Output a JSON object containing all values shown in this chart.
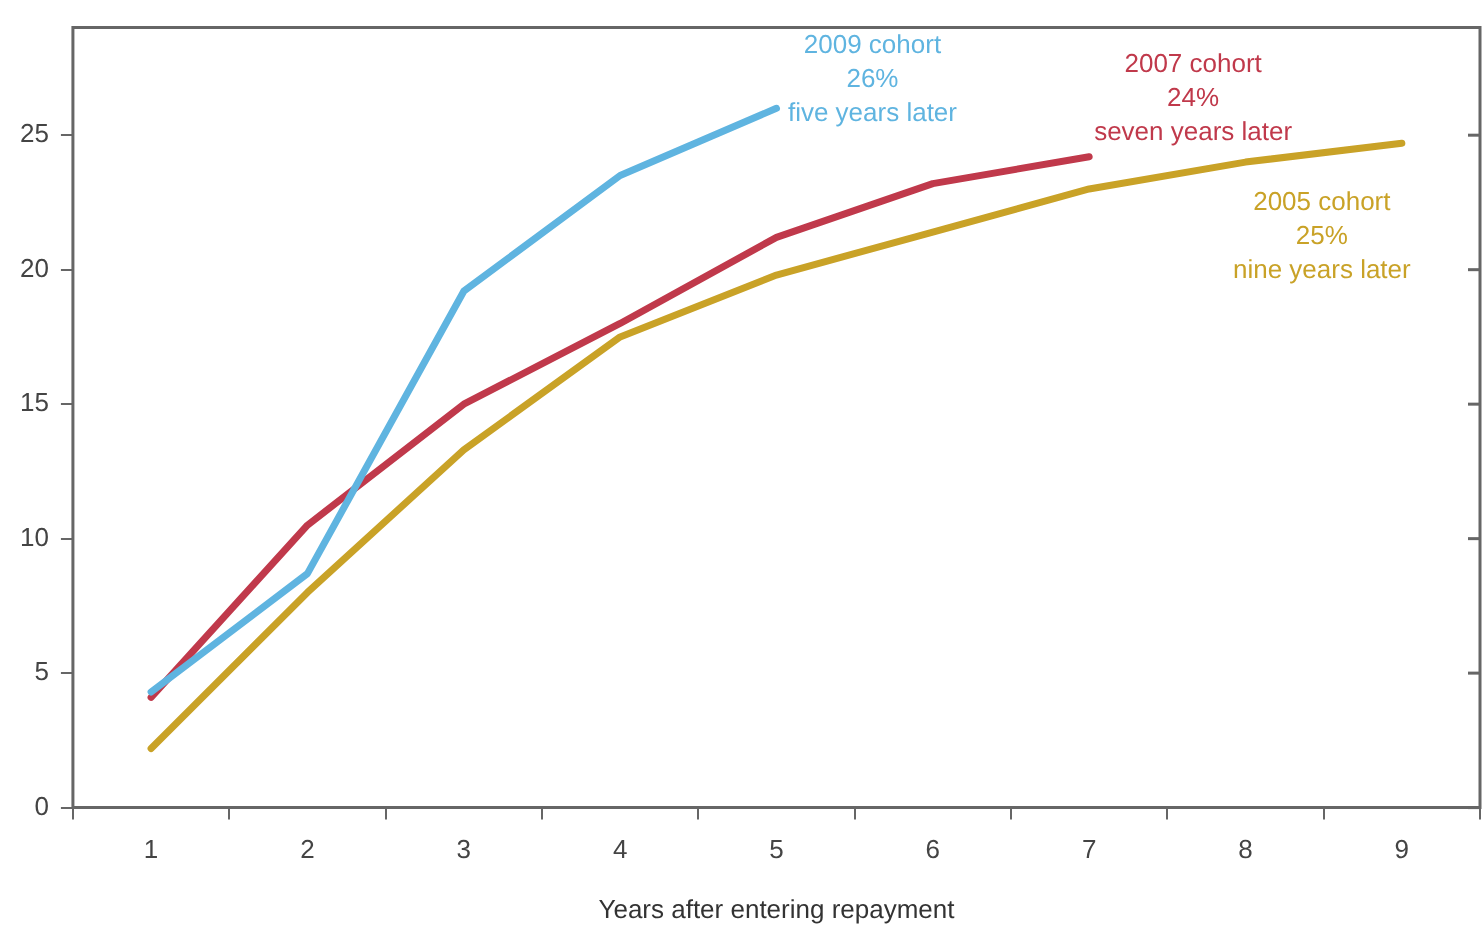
{
  "chart_data": {
    "type": "line",
    "xlabel": "Years after entering repayment",
    "categories": [
      "1",
      "2",
      "3",
      "4",
      "5",
      "6",
      "7",
      "8",
      "9"
    ],
    "series": [
      {
        "color": "#5fb4e0",
        "values": [
          4.3,
          8.7,
          19.2,
          23.5,
          26,
          null,
          null,
          null,
          null
        ]
      },
      {
        "color": "#c0394b",
        "values": [
          4.1,
          10.5,
          15.0,
          18.0,
          21.2,
          23.2,
          24.2,
          null,
          null
        ]
      },
      {
        "color": "#c9a227",
        "values": [
          2.2,
          8.0,
          13.3,
          17.5,
          19.8,
          21.4,
          23.0,
          24.0,
          24.7
        ]
      }
    ],
    "annotations": [
      {
        "text": "2009 cohort\n26%\nfive years later",
        "x": "5",
        "y": 26
      },
      {
        "text": "2007 cohort\n24%\nseven years later",
        "x": "7",
        "y": 24.2
      },
      {
        "text": "2005 cohort\n25%\nnine years later",
        "x": "9",
        "y": 24.7
      }
    ],
    "ylim": [
      0,
      29
    ],
    "yticks": [
      0,
      5,
      10,
      15,
      20,
      25
    ],
    "grid": false,
    "legend": false,
    "marker": "none",
    "line_style": "solid"
  }
}
